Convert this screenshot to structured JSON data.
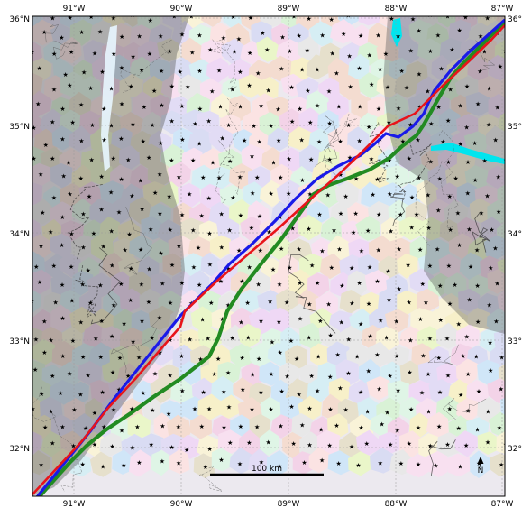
{
  "map": {
    "lon_range": [
      -91.4,
      -87.0
    ],
    "lat_range": [
      31.6,
      36.05
    ],
    "x_ticks": [
      "91°W",
      "90°W",
      "89°W",
      "88°W",
      "87°W"
    ],
    "y_ticks": [
      "36°N",
      "35°N",
      "34°N",
      "33°N",
      "32°N"
    ],
    "y_ticks_right": [
      "36°N",
      "35°N",
      "34°N",
      "33°N",
      "32°N"
    ],
    "scale_bar_label": "100 km",
    "north_arrow_label": "N",
    "colors": {
      "red_track": "#e8141a",
      "blue_track": "#1a1ae8",
      "green_track": "#228b22",
      "water": "#00e5ee",
      "outside_shade": "#6f6f6f"
    },
    "legend": "none",
    "grid": "on"
  }
}
